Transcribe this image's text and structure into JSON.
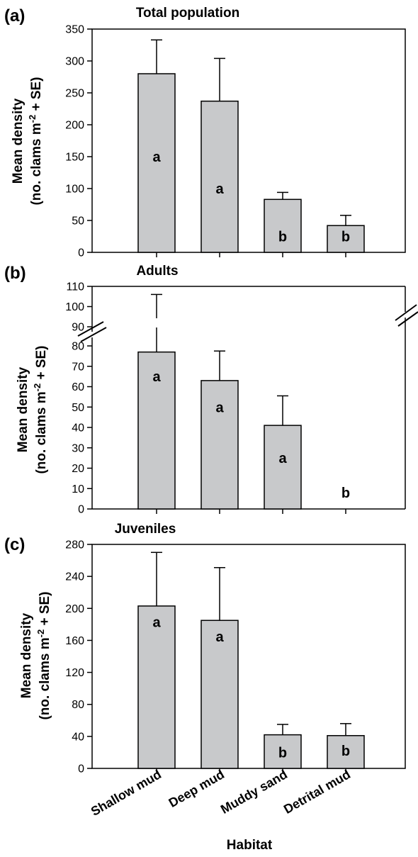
{
  "colors": {
    "bar_fill": "#c8c9cb",
    "axis": "#000000"
  },
  "xlabel": "Habitat",
  "categories": [
    "Shallow mud",
    "Deep mud",
    "Muddy sand",
    "Detrital mud"
  ],
  "chart_data": [
    {
      "type": "bar",
      "panel_label": "(a)",
      "title": "Total population",
      "ylabel_line1": "Mean density",
      "ylabel_line2": "(no. clams m",
      "ylabel_sup": "-2",
      "ylabel_tail": " + SE)",
      "categories": [
        "Shallow mud",
        "Deep mud",
        "Muddy sand",
        "Detrital mud"
      ],
      "values": [
        280,
        237,
        83,
        42
      ],
      "errors": [
        53,
        67,
        11,
        16
      ],
      "significance": [
        "a",
        "a",
        "b",
        "b"
      ],
      "yticks": [
        0,
        50,
        100,
        150,
        200,
        250,
        300,
        350
      ],
      "ylim": [
        0,
        350
      ],
      "grid": false
    },
    {
      "type": "bar",
      "panel_label": "(b)",
      "title": "Adults",
      "ylabel_line1": "Mean  density",
      "ylabel_line2": "(no. clams m",
      "ylabel_sup": "-2",
      "ylabel_tail": " + SE)",
      "categories": [
        "Shallow mud",
        "Deep mud",
        "Muddy sand",
        "Detrital mud"
      ],
      "values": [
        77,
        63,
        41,
        0
      ],
      "errors": [
        29,
        14.5,
        14.5,
        0
      ],
      "significance": [
        "a",
        "a",
        "a",
        "b"
      ],
      "yticks_lower": [
        0,
        10,
        20,
        30,
        40,
        50,
        60,
        70,
        80
      ],
      "yticks_upper": [
        90,
        100,
        110
      ],
      "ylim": [
        0,
        110
      ],
      "axis_break": [
        80,
        90
      ],
      "grid": false
    },
    {
      "type": "bar",
      "panel_label": "(c)",
      "title": "Juveniles",
      "ylabel_line1": "Mean  density",
      "ylabel_line2": "(no. clams m",
      "ylabel_sup": "-2",
      "ylabel_tail": " + SE)",
      "categories": [
        "Shallow mud",
        "Deep mud",
        "Muddy sand",
        "Detrital mud"
      ],
      "values": [
        203,
        185,
        42,
        41
      ],
      "errors": [
        67,
        66,
        13,
        15
      ],
      "significance": [
        "a",
        "a",
        "b",
        "b"
      ],
      "yticks": [
        0,
        40,
        80,
        120,
        160,
        200,
        240,
        280
      ],
      "ylim": [
        0,
        280
      ],
      "grid": false
    }
  ]
}
